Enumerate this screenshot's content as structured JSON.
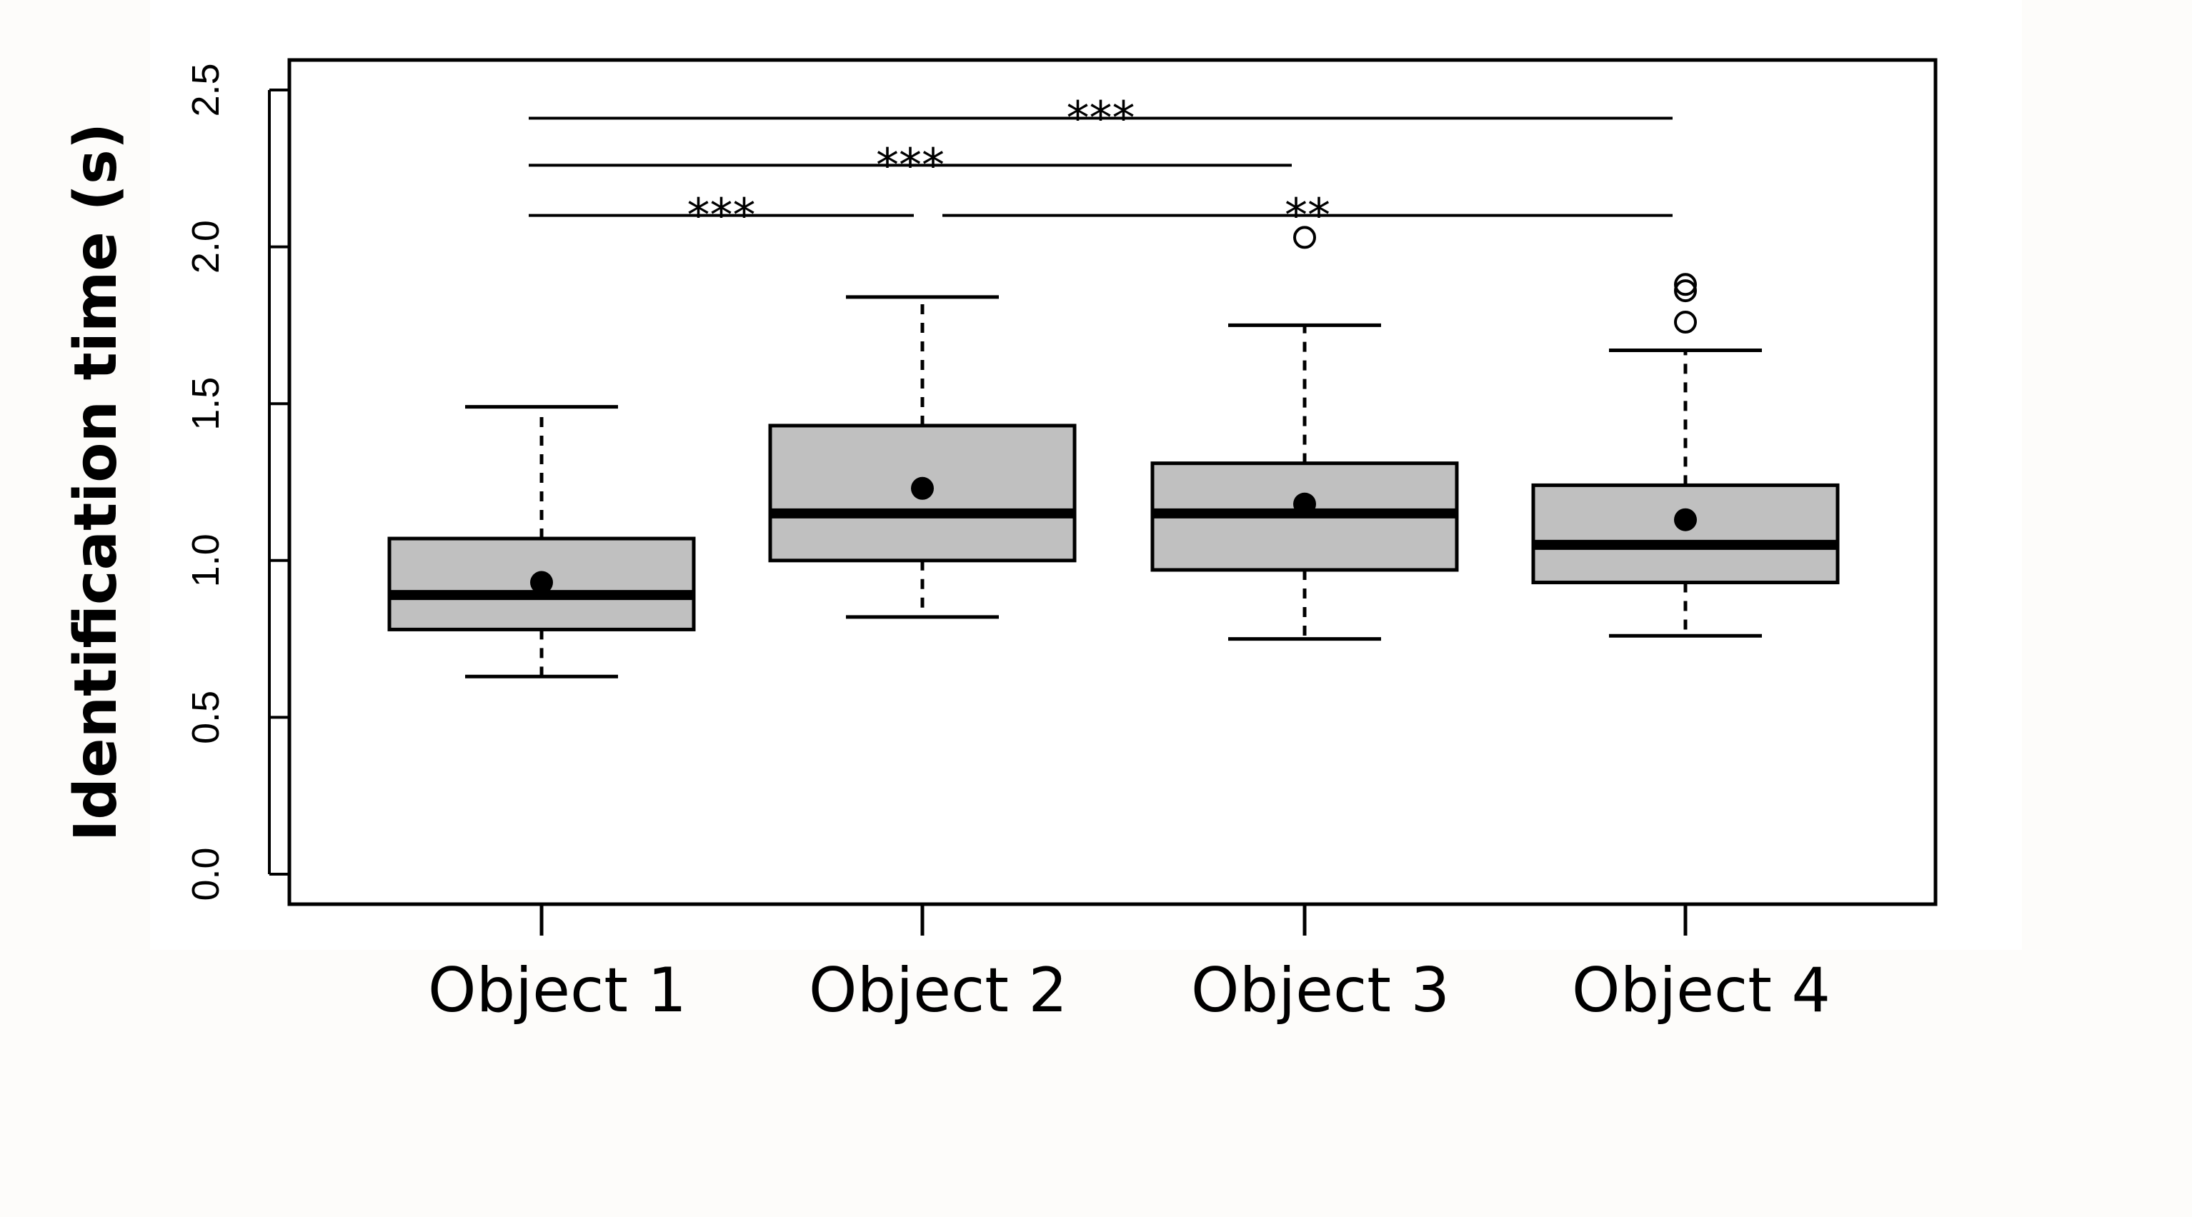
{
  "chart_data": {
    "type": "box",
    "title": "",
    "xlabel": "",
    "ylabel": "Identification time (s)",
    "ylim": [
      0,
      2.5
    ],
    "yticks": [
      "0.0",
      "0.5",
      "1.0",
      "1.5",
      "2.0",
      "2.5"
    ],
    "grid": false,
    "colors": {
      "box_fill": "#c0c0c0",
      "line": "#000000",
      "background": "#ffffff"
    },
    "categories": [
      "Object 1",
      "Object 2",
      "Object 3",
      "Object 4"
    ],
    "boxes": [
      {
        "min": 0.63,
        "q1": 0.78,
        "median": 0.89,
        "q3": 1.07,
        "max": 1.49,
        "mean": 0.93,
        "outliers": []
      },
      {
        "min": 0.82,
        "q1": 1.0,
        "median": 1.15,
        "q3": 1.43,
        "max": 1.84,
        "mean": 1.23,
        "outliers": []
      },
      {
        "min": 0.75,
        "q1": 0.97,
        "median": 1.15,
        "q3": 1.31,
        "max": 1.75,
        "mean": 1.18,
        "outliers": [
          2.03
        ]
      },
      {
        "min": 0.76,
        "q1": 0.93,
        "median": 1.05,
        "q3": 1.24,
        "max": 1.67,
        "mean": 1.13,
        "outliers": [
          1.76,
          1.86,
          1.88
        ]
      }
    ],
    "significance": [
      {
        "from": "Object 1",
        "to": "Object 2",
        "y": 2.1,
        "label": "***"
      },
      {
        "from": "Object 2",
        "to": "Object 4",
        "y": 2.1,
        "label": "**"
      },
      {
        "from": "Object 1",
        "to": "Object 3",
        "y": 2.26,
        "label": "***"
      },
      {
        "from": "Object 1",
        "to": "Object 4",
        "y": 2.41,
        "label": "***"
      }
    ]
  }
}
